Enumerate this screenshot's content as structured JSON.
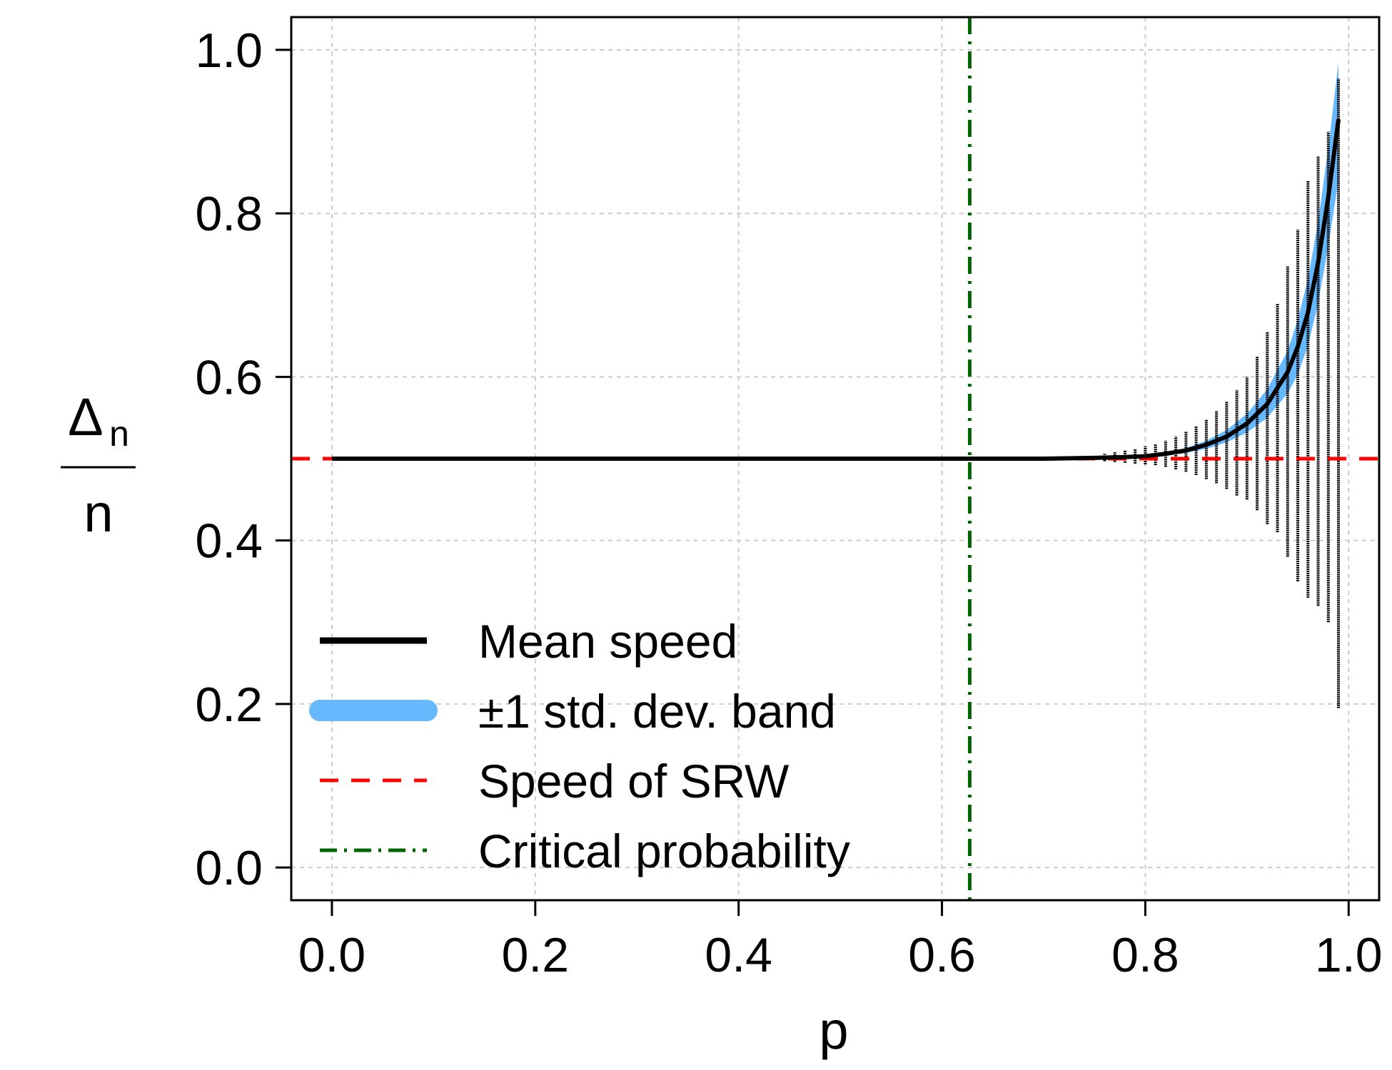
{
  "chart_data": {
    "type": "line",
    "title": "",
    "xlabel": "p",
    "ylabel": {
      "numerator": "Δ",
      "subscript": "n",
      "denominator": "n"
    },
    "xlim": [
      -0.04,
      1.03
    ],
    "ylim": [
      -0.04,
      1.04
    ],
    "x_ticks": [
      0.0,
      0.2,
      0.4,
      0.6,
      0.8,
      1.0
    ],
    "x_tick_labels": [
      "0.0",
      "0.2",
      "0.4",
      "0.6",
      "0.8",
      "1.0"
    ],
    "y_ticks": [
      0.0,
      0.2,
      0.4,
      0.6,
      0.8,
      1.0
    ],
    "y_tick_labels": [
      "0.0",
      "0.2",
      "0.4",
      "0.6",
      "0.8",
      "1.0"
    ],
    "grid": true,
    "legend_position": "bottom-left",
    "colors": {
      "mean": "#000000",
      "band": "#66b8ff",
      "srw": "#ff0000",
      "critical": "#006400",
      "grid": "#cccccc"
    },
    "series": [
      {
        "name": "Mean speed",
        "x": [
          0.0,
          0.1,
          0.2,
          0.3,
          0.4,
          0.5,
          0.6,
          0.7,
          0.75,
          0.78,
          0.8,
          0.82,
          0.84,
          0.86,
          0.88,
          0.9,
          0.92,
          0.94,
          0.95,
          0.96,
          0.97,
          0.98,
          0.99
        ],
        "y": [
          0.5,
          0.5,
          0.5,
          0.5,
          0.5,
          0.5,
          0.5,
          0.5,
          0.501,
          0.502,
          0.503,
          0.506,
          0.51,
          0.517,
          0.527,
          0.543,
          0.567,
          0.606,
          0.637,
          0.679,
          0.74,
          0.82,
          0.915
        ]
      },
      {
        "name": "±1 std. dev. band",
        "x": [
          0.76,
          0.8,
          0.82,
          0.84,
          0.86,
          0.88,
          0.9,
          0.92,
          0.94,
          0.95,
          0.96,
          0.97,
          0.98,
          0.99
        ],
        "lower": [
          0.5,
          0.502,
          0.504,
          0.507,
          0.512,
          0.52,
          0.532,
          0.55,
          0.58,
          0.603,
          0.638,
          0.69,
          0.76,
          0.84
        ],
        "upper": [
          0.502,
          0.505,
          0.508,
          0.513,
          0.522,
          0.535,
          0.555,
          0.585,
          0.632,
          0.67,
          0.72,
          0.79,
          0.88,
          0.985
        ]
      },
      {
        "name": "Speed of SRW",
        "y": 0.5
      },
      {
        "name": "Critical probability",
        "x": 0.6273
      }
    ],
    "sample_spread": {
      "x": [
        0.76,
        0.77,
        0.78,
        0.79,
        0.8,
        0.81,
        0.82,
        0.83,
        0.84,
        0.85,
        0.86,
        0.87,
        0.88,
        0.89,
        0.9,
        0.91,
        0.92,
        0.93,
        0.94,
        0.95,
        0.96,
        0.97,
        0.98,
        0.99
      ],
      "min": [
        0.497,
        0.496,
        0.495,
        0.494,
        0.493,
        0.492,
        0.49,
        0.487,
        0.484,
        0.48,
        0.475,
        0.47,
        0.463,
        0.455,
        0.45,
        0.437,
        0.42,
        0.41,
        0.38,
        0.35,
        0.33,
        0.32,
        0.3,
        0.195
      ],
      "max": [
        0.506,
        0.508,
        0.51,
        0.512,
        0.515,
        0.518,
        0.522,
        0.527,
        0.533,
        0.54,
        0.548,
        0.558,
        0.57,
        0.584,
        0.6,
        0.625,
        0.655,
        0.69,
        0.735,
        0.78,
        0.84,
        0.87,
        0.9,
        0.965
      ]
    }
  }
}
